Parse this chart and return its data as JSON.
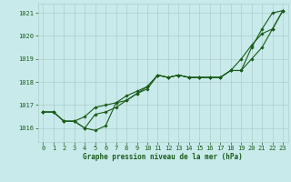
{
  "xlabel": "Graphe pression niveau de la mer (hPa)",
  "ylim": [
    1015.4,
    1021.4
  ],
  "xlim": [
    -0.5,
    23.5
  ],
  "yticks": [
    1016,
    1017,
    1018,
    1019,
    1020,
    1021
  ],
  "xticks": [
    0,
    1,
    2,
    3,
    4,
    5,
    6,
    7,
    8,
    9,
    10,
    11,
    12,
    13,
    14,
    15,
    16,
    17,
    18,
    19,
    20,
    21,
    22,
    23
  ],
  "bg_color": "#c8eaea",
  "grid_color": "#b0cccc",
  "line_color": "#1a5c1a",
  "series": [
    [
      1016.7,
      1016.7,
      1016.3,
      1016.3,
      1016.0,
      1015.9,
      1016.1,
      1017.1,
      1017.2,
      1017.5,
      1017.7,
      1018.3,
      1018.2,
      1018.3,
      1018.2,
      1018.2,
      1018.2,
      1018.2,
      1018.5,
      1018.5,
      1019.5,
      1020.3,
      1021.0,
      1021.1
    ],
    [
      1016.7,
      1016.7,
      1016.3,
      1016.3,
      1016.0,
      1016.6,
      1016.7,
      1016.9,
      1017.2,
      1017.5,
      1017.8,
      1018.3,
      1018.2,
      1018.3,
      1018.2,
      1018.2,
      1018.2,
      1018.2,
      1018.5,
      1019.0,
      1019.6,
      1020.1,
      1020.3,
      1021.1
    ],
    [
      1016.7,
      1016.7,
      1016.3,
      1016.3,
      1016.5,
      1016.9,
      1017.0,
      1017.1,
      1017.4,
      1017.6,
      1017.8,
      1018.3,
      1018.2,
      1018.3,
      1018.2,
      1018.2,
      1018.2,
      1018.2,
      1018.5,
      1018.5,
      1019.0,
      1019.5,
      1020.3,
      1021.1
    ]
  ],
  "tick_fontsize": 5.0,
  "label_fontsize": 5.5,
  "linewidth": 0.8,
  "markersize": 1.8
}
